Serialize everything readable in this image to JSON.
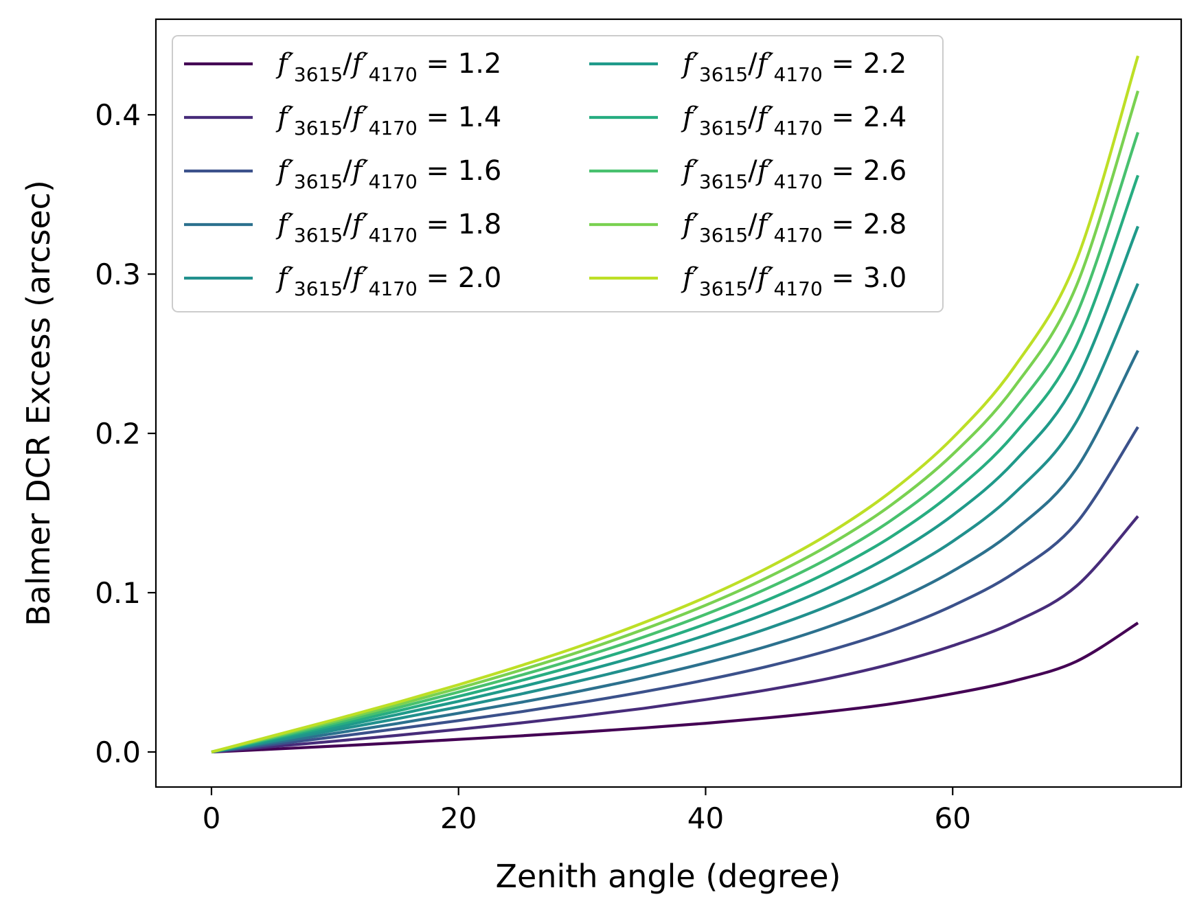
{
  "chart_data": {
    "type": "line",
    "xlabel": "Zenith angle (degree)",
    "ylabel": "Balmer DCR Excess (arcsec)",
    "xlim": [
      -4.5,
      78.5
    ],
    "ylim": [
      -0.022,
      0.46
    ],
    "xticks": [
      0,
      20,
      40,
      60
    ],
    "yticks": [
      0.0,
      0.1,
      0.2,
      0.3,
      0.4
    ],
    "xtick_labels": [
      "0",
      "20",
      "40",
      "60"
    ],
    "ytick_labels": [
      "0.0",
      "0.1",
      "0.2",
      "0.3",
      "0.4"
    ],
    "grid": false,
    "legend": {
      "placement": "top-left",
      "columns": 2
    },
    "x": [
      0,
      5,
      10,
      15,
      20,
      25,
      30,
      35,
      40,
      45,
      50,
      55,
      60,
      65,
      70,
      75
    ],
    "series": [
      {
        "name": "f'3615/f'4170 = 1.2",
        "ratio": "1.2",
        "color": "#440154",
        "values": [
          0,
          0.0018,
          0.0037,
          0.0057,
          0.0079,
          0.0101,
          0.0125,
          0.0151,
          0.018,
          0.0214,
          0.0254,
          0.0302,
          0.0366,
          0.0447,
          0.0568,
          0.081
        ]
      },
      {
        "name": "f'3615/f'4170 = 1.4",
        "ratio": "1.4",
        "color": "#472c7a",
        "values": [
          0,
          0.0034,
          0.0068,
          0.0104,
          0.0142,
          0.0182,
          0.0226,
          0.0274,
          0.0329,
          0.039,
          0.0462,
          0.0552,
          0.0667,
          0.0815,
          0.104,
          0.148
        ]
      },
      {
        "name": "f'3615/f'4170 = 1.6",
        "ratio": "1.6",
        "color": "#3b518b",
        "values": [
          0,
          0.0047,
          0.0095,
          0.0145,
          0.0197,
          0.0252,
          0.0312,
          0.0378,
          0.0452,
          0.0537,
          0.0638,
          0.076,
          0.0918,
          0.1125,
          0.1436,
          0.204
        ]
      },
      {
        "name": "f'3615/f'4170 = 1.8",
        "ratio": "1.8",
        "color": "#2c718e",
        "values": [
          0,
          0.0058,
          0.0117,
          0.0178,
          0.0243,
          0.0311,
          0.0385,
          0.0467,
          0.0559,
          0.0664,
          0.0788,
          0.094,
          0.1135,
          0.1392,
          0.1777,
          0.252
        ]
      },
      {
        "name": "f'3615/f'4170 = 2.0",
        "ratio": "2.0",
        "color": "#21908d",
        "values": [
          0,
          0.0068,
          0.0137,
          0.0208,
          0.0283,
          0.0363,
          0.045,
          0.0545,
          0.0652,
          0.0775,
          0.0919,
          0.1096,
          0.1322,
          0.1624,
          0.2071,
          0.294
        ]
      },
      {
        "name": "f'3615/f'4170 = 2.2",
        "ratio": "2.2",
        "color": "#1f9a8a",
        "values": [
          0,
          0.0076,
          0.0153,
          0.0234,
          0.0318,
          0.0408,
          0.0505,
          0.0612,
          0.0733,
          0.0871,
          0.1033,
          0.1232,
          0.1486,
          0.1823,
          0.2325,
          0.33
        ]
      },
      {
        "name": "f'3615/f'4170 = 2.4",
        "ratio": "2.4",
        "color": "#27ad81",
        "values": [
          0,
          0.0084,
          0.0168,
          0.0256,
          0.0349,
          0.0447,
          0.0553,
          0.0671,
          0.0803,
          0.0954,
          0.1132,
          0.135,
          0.1628,
          0.1997,
          0.2547,
          0.362
        ]
      },
      {
        "name": "f'3615/f'4170 = 2.6",
        "ratio": "2.6",
        "color": "#48c16e",
        "values": [
          0,
          0.009,
          0.0181,
          0.0276,
          0.0376,
          0.0481,
          0.0595,
          0.0722,
          0.0864,
          0.1027,
          0.1218,
          0.1453,
          0.1752,
          0.2149,
          0.2742,
          0.389
        ]
      },
      {
        "name": "f'3615/f'4170 = 2.8",
        "ratio": "2.8",
        "color": "#7ad151",
        "values": [
          0,
          0.0096,
          0.0193,
          0.0294,
          0.04,
          0.0513,
          0.0634,
          0.077,
          0.0921,
          0.1095,
          0.1299,
          0.1549,
          0.1868,
          0.2292,
          0.2923,
          0.415
        ]
      },
      {
        "name": "f'3615/f'4170 = 3.0",
        "ratio": "3.0",
        "color": "#bddf26",
        "values": [
          0,
          0.0102,
          0.0204,
          0.031,
          0.0422,
          0.0541,
          0.0669,
          0.0812,
          0.0971,
          0.1155,
          0.137,
          0.1634,
          0.1971,
          0.2418,
          0.3083,
          0.437
        ]
      }
    ]
  }
}
